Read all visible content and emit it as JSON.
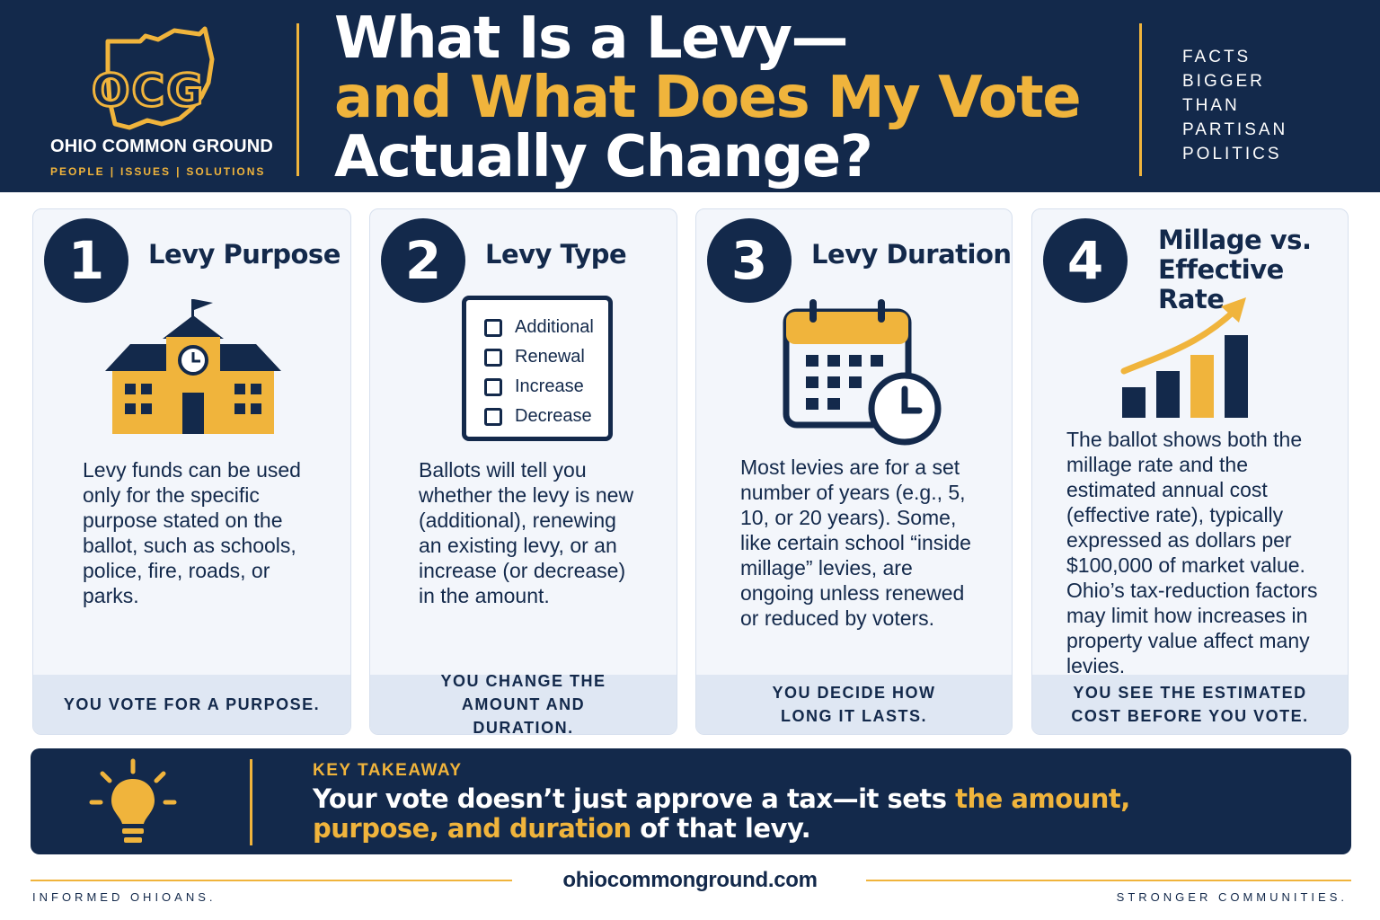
{
  "header": {
    "logo_letters": "OCG",
    "org_name": "OHIO COMMON GROUND",
    "tagline": [
      "PEOPLE",
      "ISSUES",
      "SOLUTIONS"
    ],
    "title_line1": "What Is a Levy—",
    "title_line2": "and What Does My Vote",
    "title_line3": "Actually Change?",
    "facts": [
      "FACTS",
      "BIGGER",
      "THAN",
      "PARTISAN",
      "POLITICS"
    ]
  },
  "cards": [
    {
      "number": "1",
      "title": "Levy Purpose",
      "icon": "school-building-icon",
      "body": "Levy funds can be used only for the specific purpose stated on the ballot, such as schools, police, fire, roads, or parks.",
      "footer": "YOU VOTE FOR A PURPOSE."
    },
    {
      "number": "2",
      "title": "Levy Type",
      "icon": "checklist-icon",
      "checklist": [
        "Additional",
        "Renewal",
        "Increase",
        "Decrease"
      ],
      "body": "Ballots will tell you whether the levy is new (additional), renewing an existing levy, or an increase (or decrease) in the amount.",
      "footer": "YOU CHANGE THE AMOUNT AND DURATION."
    },
    {
      "number": "3",
      "title": "Levy Duration",
      "icon": "calendar-clock-icon",
      "body": "Most levies are for a set number of years (e.g., 5, 10, or 20 years). Some, like certain school “inside millage” levies, are ongoing unless renewed or reduced by voters.",
      "footer": "YOU DECIDE HOW LONG IT LASTS."
    },
    {
      "number": "4",
      "title_line1": "Millage vs.",
      "title_line2": "Effective Rate",
      "icon": "growth-chart-icon",
      "body": "The ballot shows both the millage rate and the estimated annual cost (effective rate), typically expressed as dollars per $100,000 of market value. Ohio’s tax-reduction factors may limit how increases in property value affect many levies.",
      "footer": "YOU SEE THE ESTIMATED COST BEFORE YOU VOTE."
    }
  ],
  "takeaway": {
    "icon": "lightbulb-icon",
    "label": "KEY TAKEAWAY",
    "text_plain1": "Your vote doesn’t just approve a tax—it sets ",
    "text_highlight": "the amount, purpose, and duration",
    "text_plain2": " of that levy."
  },
  "footer": {
    "left": "INFORMED OHIOANS.",
    "url": "ohiocommonground.com",
    "right": "STRONGER COMMUNITIES."
  },
  "colors": {
    "navy": "#13294b",
    "gold": "#f0b43c",
    "card_bg": "#f3f6fb",
    "card_footer_bg": "#dfe7f3"
  }
}
